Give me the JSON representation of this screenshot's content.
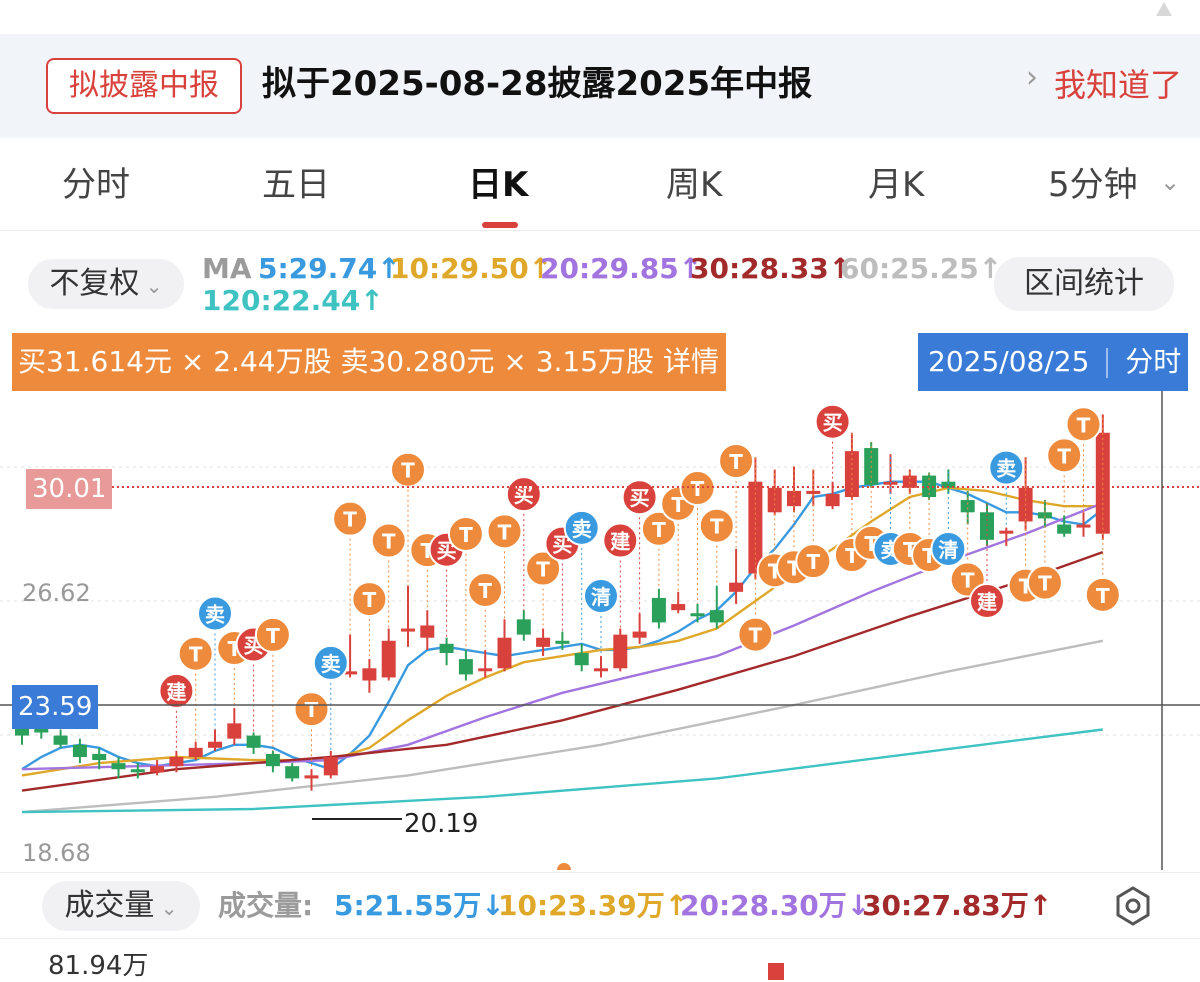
{
  "notice": {
    "tag": "拟披露中报",
    "message": "拟于2025-08-28披露2025年中报",
    "action": "我知道了"
  },
  "tabs": [
    {
      "label": "分时"
    },
    {
      "label": "五日"
    },
    {
      "label": "日K",
      "active": true
    },
    {
      "label": "周K"
    },
    {
      "label": "月K"
    },
    {
      "label": "5分钟"
    }
  ],
  "controls": {
    "adjust": "不复权",
    "ma_label": "MA",
    "ma": [
      {
        "text": "5:29.74↑",
        "color": "#3a9ae0"
      },
      {
        "text": "10:29.50↑",
        "color": "#e0a82a"
      },
      {
        "text": "20:29.85↑",
        "color": "#a274e0"
      },
      {
        "text": "30:28.33↑",
        "color": "#a32a2a"
      },
      {
        "text": "60:25.25↑",
        "color": "#bdbdbd"
      },
      {
        "text": "120:22.44↑",
        "color": "#3fc2c2"
      }
    ],
    "range_stats": "区间统计"
  },
  "chart": {
    "order_info": "买31.614元 × 2.44万股  卖30.280元 × 3.15万股  详情",
    "date": "2025/08/25",
    "date_action": "分时",
    "price_current": "30.01",
    "price_cursor": "23.59",
    "axis_high": "26.62",
    "axis_low": "18.68",
    "min_label": "20.19"
  },
  "chart_data": {
    "type": "candlestick",
    "ylim": [
      18.2,
      33.5
    ],
    "candles": [
      [
        22.8,
        22.3,
        23.1,
        22.0
      ],
      [
        22.6,
        22.4,
        22.8,
        22.2
      ],
      [
        22.3,
        22.0,
        22.5,
        21.9
      ],
      [
        22.0,
        21.6,
        22.2,
        21.4
      ],
      [
        21.7,
        21.5,
        21.9,
        21.2
      ],
      [
        21.4,
        21.2,
        21.6,
        20.9
      ],
      [
        21.2,
        21.1,
        21.4,
        20.9
      ],
      [
        21.1,
        21.3,
        21.5,
        21.0
      ],
      [
        21.3,
        21.6,
        21.8,
        21.1
      ],
      [
        21.6,
        21.9,
        22.1,
        21.5
      ],
      [
        21.9,
        22.1,
        22.5,
        21.8
      ],
      [
        22.2,
        22.7,
        23.2,
        22.0
      ],
      [
        22.3,
        21.9,
        22.4,
        21.7
      ],
      [
        21.7,
        21.3,
        21.8,
        21.1
      ],
      [
        21.3,
        20.9,
        21.4,
        20.8
      ],
      [
        20.9,
        21.0,
        21.2,
        20.5
      ],
      [
        21.0,
        21.6,
        21.8,
        20.9
      ],
      [
        24.3,
        24.4,
        25.6,
        24.2
      ],
      [
        24.1,
        24.5,
        24.8,
        23.7
      ],
      [
        24.2,
        25.4,
        25.8,
        24.1
      ],
      [
        25.7,
        25.8,
        27.2,
        25.2
      ],
      [
        25.5,
        25.9,
        26.4,
        25.1
      ],
      [
        25.3,
        25.0,
        25.5,
        24.6
      ],
      [
        24.8,
        24.3,
        25.1,
        24.1
      ],
      [
        24.5,
        24.5,
        25.1,
        24.2
      ],
      [
        24.5,
        25.5,
        26.1,
        24.4
      ],
      [
        26.1,
        25.6,
        26.4,
        25.4
      ],
      [
        25.2,
        25.5,
        25.8,
        24.9
      ],
      [
        25.4,
        25.3,
        25.7,
        25.1
      ],
      [
        25.0,
        24.6,
        25.3,
        24.4
      ],
      [
        24.5,
        24.5,
        24.9,
        24.2
      ],
      [
        24.5,
        25.6,
        25.8,
        24.4
      ],
      [
        25.5,
        25.7,
        26.3,
        25.3
      ],
      [
        26.8,
        26.0,
        27.1,
        25.8
      ],
      [
        26.4,
        26.6,
        27.0,
        26.3
      ],
      [
        26.3,
        26.2,
        26.6,
        26.0
      ],
      [
        26.4,
        26.0,
        27.2,
        25.8
      ],
      [
        27.0,
        27.3,
        28.4,
        26.6
      ],
      [
        27.6,
        30.6,
        31.4,
        27.4
      ],
      [
        29.6,
        30.4,
        31.0,
        29.5
      ],
      [
        29.8,
        30.3,
        31.1,
        29.6
      ],
      [
        30.2,
        30.3,
        31.0,
        29.8
      ],
      [
        29.8,
        30.2,
        30.6,
        29.7
      ],
      [
        30.1,
        31.6,
        32.2,
        30.0
      ],
      [
        31.7,
        30.5,
        31.9,
        30.4
      ],
      [
        30.5,
        30.6,
        31.5,
        30.2
      ],
      [
        30.4,
        30.8,
        31.0,
        30.2
      ],
      [
        30.8,
        30.1,
        30.9,
        30.0
      ],
      [
        30.6,
        30.4,
        31.0,
        30.2
      ],
      [
        30.0,
        29.6,
        30.3,
        29.2
      ],
      [
        29.6,
        28.7,
        29.9,
        28.5
      ],
      [
        28.9,
        29.0,
        29.1,
        28.5
      ],
      [
        29.3,
        30.4,
        31.4,
        29.0
      ],
      [
        29.6,
        29.4,
        30.0,
        29.1
      ],
      [
        29.2,
        28.9,
        29.5,
        28.8
      ],
      [
        29.1,
        29.2,
        29.6,
        28.8
      ],
      [
        28.9,
        32.2,
        32.8,
        28.7
      ]
    ],
    "ma_lines": [
      {
        "name": "MA5",
        "color": "#3a9ae0",
        "points": [
          [
            0,
            21.2
          ],
          [
            1,
            21.6
          ],
          [
            2,
            21.9
          ],
          [
            3,
            22.0
          ],
          [
            4,
            21.9
          ],
          [
            5,
            21.6
          ],
          [
            6,
            21.4
          ],
          [
            7,
            21.3
          ],
          [
            8,
            21.4
          ],
          [
            9,
            21.5
          ],
          [
            10,
            21.8
          ],
          [
            11,
            22.0
          ],
          [
            12,
            22.0
          ],
          [
            13,
            21.9
          ],
          [
            14,
            21.6
          ],
          [
            15,
            21.4
          ],
          [
            16,
            21.2
          ],
          [
            17,
            21.7
          ],
          [
            18,
            22.3
          ],
          [
            19,
            23.4
          ],
          [
            20,
            24.6
          ],
          [
            21,
            25.1
          ],
          [
            22,
            25.2
          ],
          [
            23,
            25.1
          ],
          [
            24,
            25.0
          ],
          [
            25,
            24.9
          ],
          [
            26,
            25.0
          ],
          [
            27,
            25.1
          ],
          [
            28,
            25.2
          ],
          [
            29,
            25.3
          ],
          [
            30,
            25.1
          ],
          [
            31,
            25.1
          ],
          [
            32,
            25.2
          ],
          [
            33,
            25.4
          ],
          [
            34,
            25.7
          ],
          [
            35,
            26.1
          ],
          [
            36,
            26.4
          ],
          [
            37,
            27.0
          ],
          [
            38,
            27.8
          ],
          [
            39,
            28.4
          ],
          [
            40,
            29.2
          ],
          [
            41,
            30.1
          ],
          [
            42,
            30.2
          ],
          [
            43,
            30.4
          ],
          [
            44,
            30.5
          ],
          [
            45,
            30.6
          ],
          [
            46,
            30.6
          ],
          [
            47,
            30.6
          ],
          [
            48,
            30.4
          ],
          [
            49,
            30.2
          ],
          [
            50,
            29.9
          ],
          [
            51,
            29.6
          ],
          [
            52,
            29.6
          ],
          [
            53,
            29.5
          ],
          [
            54,
            29.3
          ],
          [
            55,
            29.2
          ],
          [
            56,
            29.7
          ]
        ]
      },
      {
        "name": "MA10",
        "color": "#e0a82a",
        "points": [
          [
            0,
            21.0
          ],
          [
            4,
            21.4
          ],
          [
            8,
            21.6
          ],
          [
            12,
            21.5
          ],
          [
            16,
            21.5
          ],
          [
            18,
            21.9
          ],
          [
            20,
            22.8
          ],
          [
            22,
            23.6
          ],
          [
            24,
            24.2
          ],
          [
            26,
            24.7
          ],
          [
            28,
            24.9
          ],
          [
            30,
            25.1
          ],
          [
            32,
            25.2
          ],
          [
            34,
            25.4
          ],
          [
            36,
            25.8
          ],
          [
            38,
            26.7
          ],
          [
            40,
            27.6
          ],
          [
            42,
            28.4
          ],
          [
            44,
            29.3
          ],
          [
            46,
            30.1
          ],
          [
            48,
            30.4
          ],
          [
            50,
            30.3
          ],
          [
            52,
            30.0
          ],
          [
            54,
            29.8
          ],
          [
            56,
            29.8
          ]
        ]
      },
      {
        "name": "MA20",
        "color": "#a274e0",
        "points": [
          [
            0,
            21.2
          ],
          [
            6,
            21.3
          ],
          [
            12,
            21.4
          ],
          [
            16,
            21.5
          ],
          [
            20,
            22.0
          ],
          [
            24,
            22.9
          ],
          [
            28,
            23.7
          ],
          [
            32,
            24.3
          ],
          [
            36,
            24.9
          ],
          [
            40,
            25.9
          ],
          [
            44,
            27.0
          ],
          [
            48,
            28.0
          ],
          [
            52,
            28.9
          ],
          [
            56,
            29.9
          ]
        ]
      },
      {
        "name": "MA30",
        "color": "#a32a2a",
        "points": [
          [
            0,
            20.5
          ],
          [
            8,
            21.2
          ],
          [
            16,
            21.6
          ],
          [
            22,
            22.0
          ],
          [
            28,
            22.8
          ],
          [
            34,
            23.8
          ],
          [
            40,
            24.9
          ],
          [
            46,
            26.2
          ],
          [
            52,
            27.4
          ],
          [
            56,
            28.3
          ]
        ]
      },
      {
        "name": "MA60",
        "color": "#bdbdbd",
        "points": [
          [
            0,
            19.8
          ],
          [
            10,
            20.3
          ],
          [
            20,
            21.0
          ],
          [
            30,
            22.0
          ],
          [
            40,
            23.3
          ],
          [
            48,
            24.4
          ],
          [
            56,
            25.4
          ]
        ]
      },
      {
        "name": "MA120",
        "color": "#3fc2c2",
        "points": [
          [
            0,
            19.8
          ],
          [
            12,
            19.9
          ],
          [
            24,
            20.3
          ],
          [
            36,
            20.9
          ],
          [
            46,
            21.7
          ],
          [
            56,
            22.5
          ]
        ]
      }
    ],
    "markers": [
      {
        "i": 8,
        "label": "建"
      },
      {
        "i": 9,
        "label": "T"
      },
      {
        "i": 10,
        "label": "卖"
      },
      {
        "i": 11,
        "label": "T"
      },
      {
        "i": 12,
        "label": "买"
      },
      {
        "i": 13,
        "label": "T"
      },
      {
        "i": 15,
        "label": "T"
      },
      {
        "i": 16,
        "label": "卖"
      },
      {
        "i": 17,
        "label": "T"
      },
      {
        "i": 18,
        "label": "T"
      },
      {
        "i": 19,
        "label": "T"
      },
      {
        "i": 20,
        "label": "T"
      },
      {
        "i": 21,
        "label": "T"
      },
      {
        "i": 22,
        "label": "买"
      },
      {
        "i": 23,
        "label": "T"
      },
      {
        "i": 24,
        "label": "T"
      },
      {
        "i": 25,
        "label": "T"
      },
      {
        "i": 26,
        "label": "买"
      },
      {
        "i": 27,
        "label": "T"
      },
      {
        "i": 28,
        "label": "买"
      },
      {
        "i": 29,
        "label": "卖"
      },
      {
        "i": 30,
        "label": "清"
      },
      {
        "i": 31,
        "label": "建"
      },
      {
        "i": 32,
        "label": "买"
      },
      {
        "i": 33,
        "label": "T"
      },
      {
        "i": 34,
        "label": "T"
      },
      {
        "i": 35,
        "label": "T"
      },
      {
        "i": 36,
        "label": "T"
      },
      {
        "i": 37,
        "label": "T"
      },
      {
        "i": 38,
        "label": "T"
      },
      {
        "i": 39,
        "label": "T"
      },
      {
        "i": 40,
        "label": "T"
      },
      {
        "i": 41,
        "label": "T"
      },
      {
        "i": 42,
        "label": "买"
      },
      {
        "i": 43,
        "label": "T"
      },
      {
        "i": 44,
        "label": "T"
      },
      {
        "i": 45,
        "label": "卖"
      },
      {
        "i": 46,
        "label": "T"
      },
      {
        "i": 47,
        "label": "T"
      },
      {
        "i": 48,
        "label": "清"
      },
      {
        "i": 49,
        "label": "T"
      },
      {
        "i": 50,
        "label": "建"
      },
      {
        "i": 51,
        "label": "卖"
      },
      {
        "i": 52,
        "label": "T"
      },
      {
        "i": 53,
        "label": "T"
      },
      {
        "i": 54,
        "label": "T"
      },
      {
        "i": 55,
        "label": "T"
      },
      {
        "i": 56,
        "label": "T"
      }
    ]
  },
  "volume": {
    "selector": "成交量",
    "label": "成交量:",
    "ma": [
      {
        "text": "5:21.55万↓",
        "color": "#3a9ae0"
      },
      {
        "text": "10:23.39万↑",
        "color": "#e0a82a"
      },
      {
        "text": "20:28.30万↓",
        "color": "#a274e0"
      },
      {
        "text": "30:27.83万↑",
        "color": "#a32a2a"
      }
    ],
    "max": "81.94万"
  },
  "colors": {
    "up": "#d9423c",
    "down": "#2aa05a",
    "accent": "#d9423c",
    "blue": "#3b7bd8",
    "orange": "#ee8a3c"
  }
}
